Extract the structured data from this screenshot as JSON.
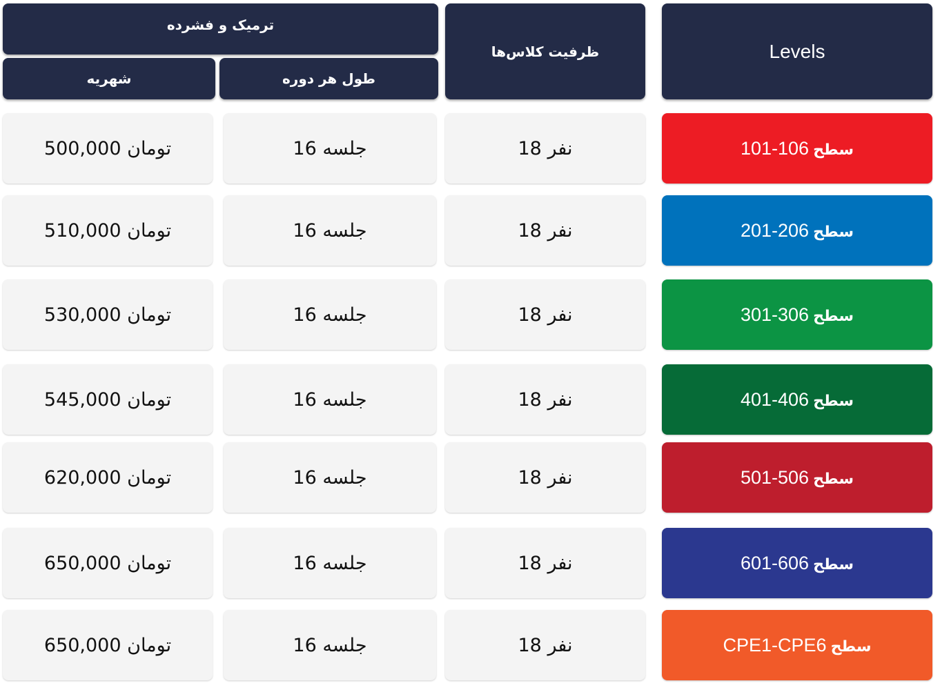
{
  "headers": {
    "group": "ترمیک و فشرده",
    "tuition": "شهریه",
    "duration": "طول هر دوره",
    "capacity": "ظرفیت کلاس‌ها",
    "levels": "Levels"
  },
  "level_prefix": "سطح",
  "rows": [
    {
      "level": "101-106",
      "color": "#ed1c24",
      "capacity": "18 نفر",
      "duration": "16 جلسه",
      "tuition": "500,000 تومان"
    },
    {
      "level": "201-206",
      "color": "#0072bc",
      "capacity": "18 نفر",
      "duration": "16 جلسه",
      "tuition": "510,000  تومان"
    },
    {
      "level": "301-306",
      "color": "#0c9444",
      "capacity": "18 نفر",
      "duration": "16 جلسه",
      "tuition": "530,000 تومان"
    },
    {
      "level": "401-406",
      "color": "#066b37",
      "capacity": "18 نفر",
      "duration": "16 جلسه",
      "tuition": "545,000 تومان"
    },
    {
      "level": "501-506",
      "color": "#be1e2d",
      "capacity": "18 نفر",
      "duration": "16 جلسه",
      "tuition": "620,000 تومان"
    },
    {
      "level": "601-606",
      "color": "#2b388f",
      "capacity": "18 نفر",
      "duration": "16 جلسه",
      "tuition": "650,000 تومان"
    },
    {
      "level": "CPE1-CPE6",
      "color": "#f15a29",
      "capacity": "18 نفر",
      "duration": "16 جلسه",
      "tuition": "650,000 تومان"
    }
  ]
}
